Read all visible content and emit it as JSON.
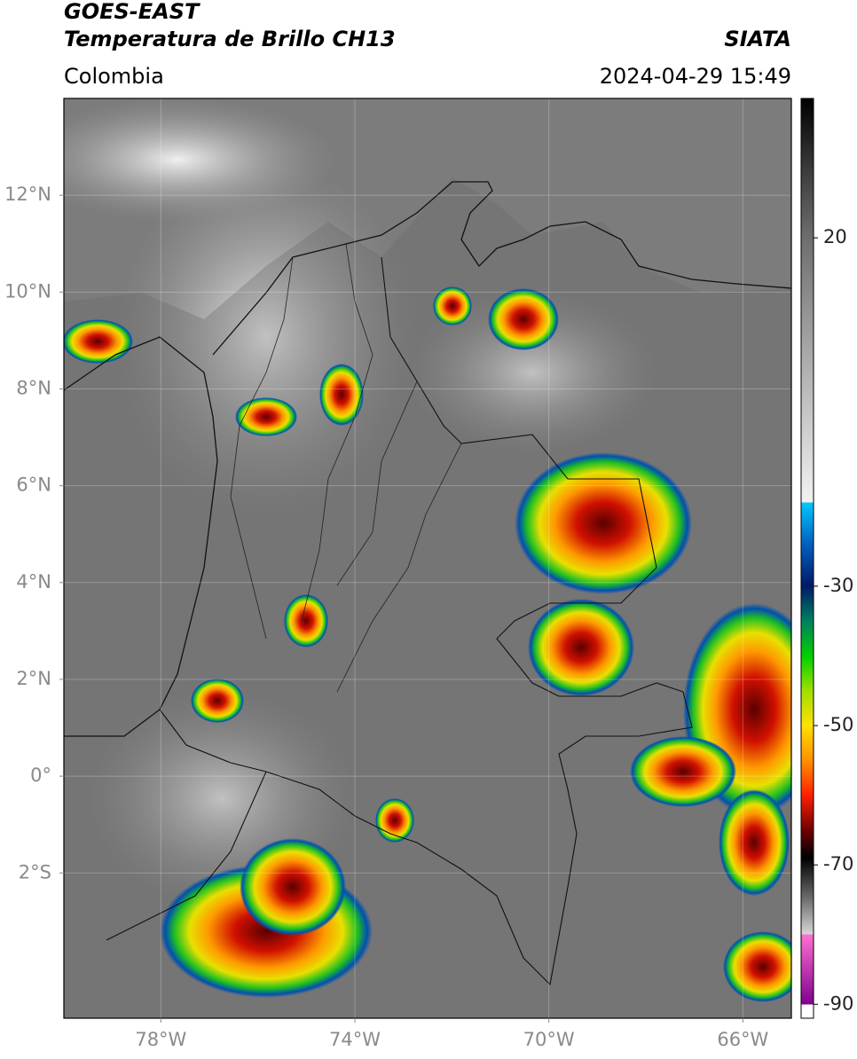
{
  "header": {
    "satellite": "GOES-EAST",
    "product": "Temperatura de Brillo CH13",
    "source": "SIATA",
    "region": "Colombia",
    "datetime": "2024-04-29 15:49"
  },
  "map": {
    "xlim": [
      -80,
      -65
    ],
    "ylim": [
      -5,
      14
    ],
    "grid": true,
    "xticks": [
      {
        "value": -78,
        "label": "78°W"
      },
      {
        "value": -74,
        "label": "74°W"
      },
      {
        "value": -70,
        "label": "70°W"
      },
      {
        "value": -66,
        "label": "66°W"
      }
    ],
    "yticks": [
      {
        "value": 12,
        "label": "12°N"
      },
      {
        "value": 10,
        "label": "10°N"
      },
      {
        "value": 8,
        "label": "8°N"
      },
      {
        "value": 6,
        "label": "6°N"
      },
      {
        "value": 4,
        "label": "4°N"
      },
      {
        "value": 2,
        "label": "2°N"
      },
      {
        "value": 0,
        "label": "0°"
      },
      {
        "value": -2,
        "label": "2°S"
      }
    ]
  },
  "colorbar": {
    "lim": [
      -92,
      40
    ],
    "ticks": [
      20,
      -30,
      -50,
      -70,
      -90
    ],
    "colormap": [
      {
        "value": 40,
        "color": "#000000"
      },
      {
        "value": 30,
        "color": "#3a3a3a"
      },
      {
        "value": 20,
        "color": "#6e6e6e"
      },
      {
        "value": 0,
        "color": "#b4b4b4"
      },
      {
        "value": -18,
        "color": "#f2f2f2"
      },
      {
        "value": -18,
        "color": "#00c8ff"
      },
      {
        "value": -24,
        "color": "#0060c0"
      },
      {
        "value": -30,
        "color": "#001a66"
      },
      {
        "value": -35,
        "color": "#008060"
      },
      {
        "value": -40,
        "color": "#00d000"
      },
      {
        "value": -45,
        "color": "#a0e000"
      },
      {
        "value": -50,
        "color": "#ffe000"
      },
      {
        "value": -55,
        "color": "#ff9000"
      },
      {
        "value": -60,
        "color": "#ff2000"
      },
      {
        "value": -65,
        "color": "#700000"
      },
      {
        "value": -69,
        "color": "#000000"
      },
      {
        "value": -75,
        "color": "#707070"
      },
      {
        "value": -80,
        "color": "#d8d8d8"
      },
      {
        "value": -80,
        "color": "#ff70d0"
      },
      {
        "value": -90,
        "color": "#800090"
      },
      {
        "value": -90,
        "color": "#ffffff"
      }
    ]
  }
}
